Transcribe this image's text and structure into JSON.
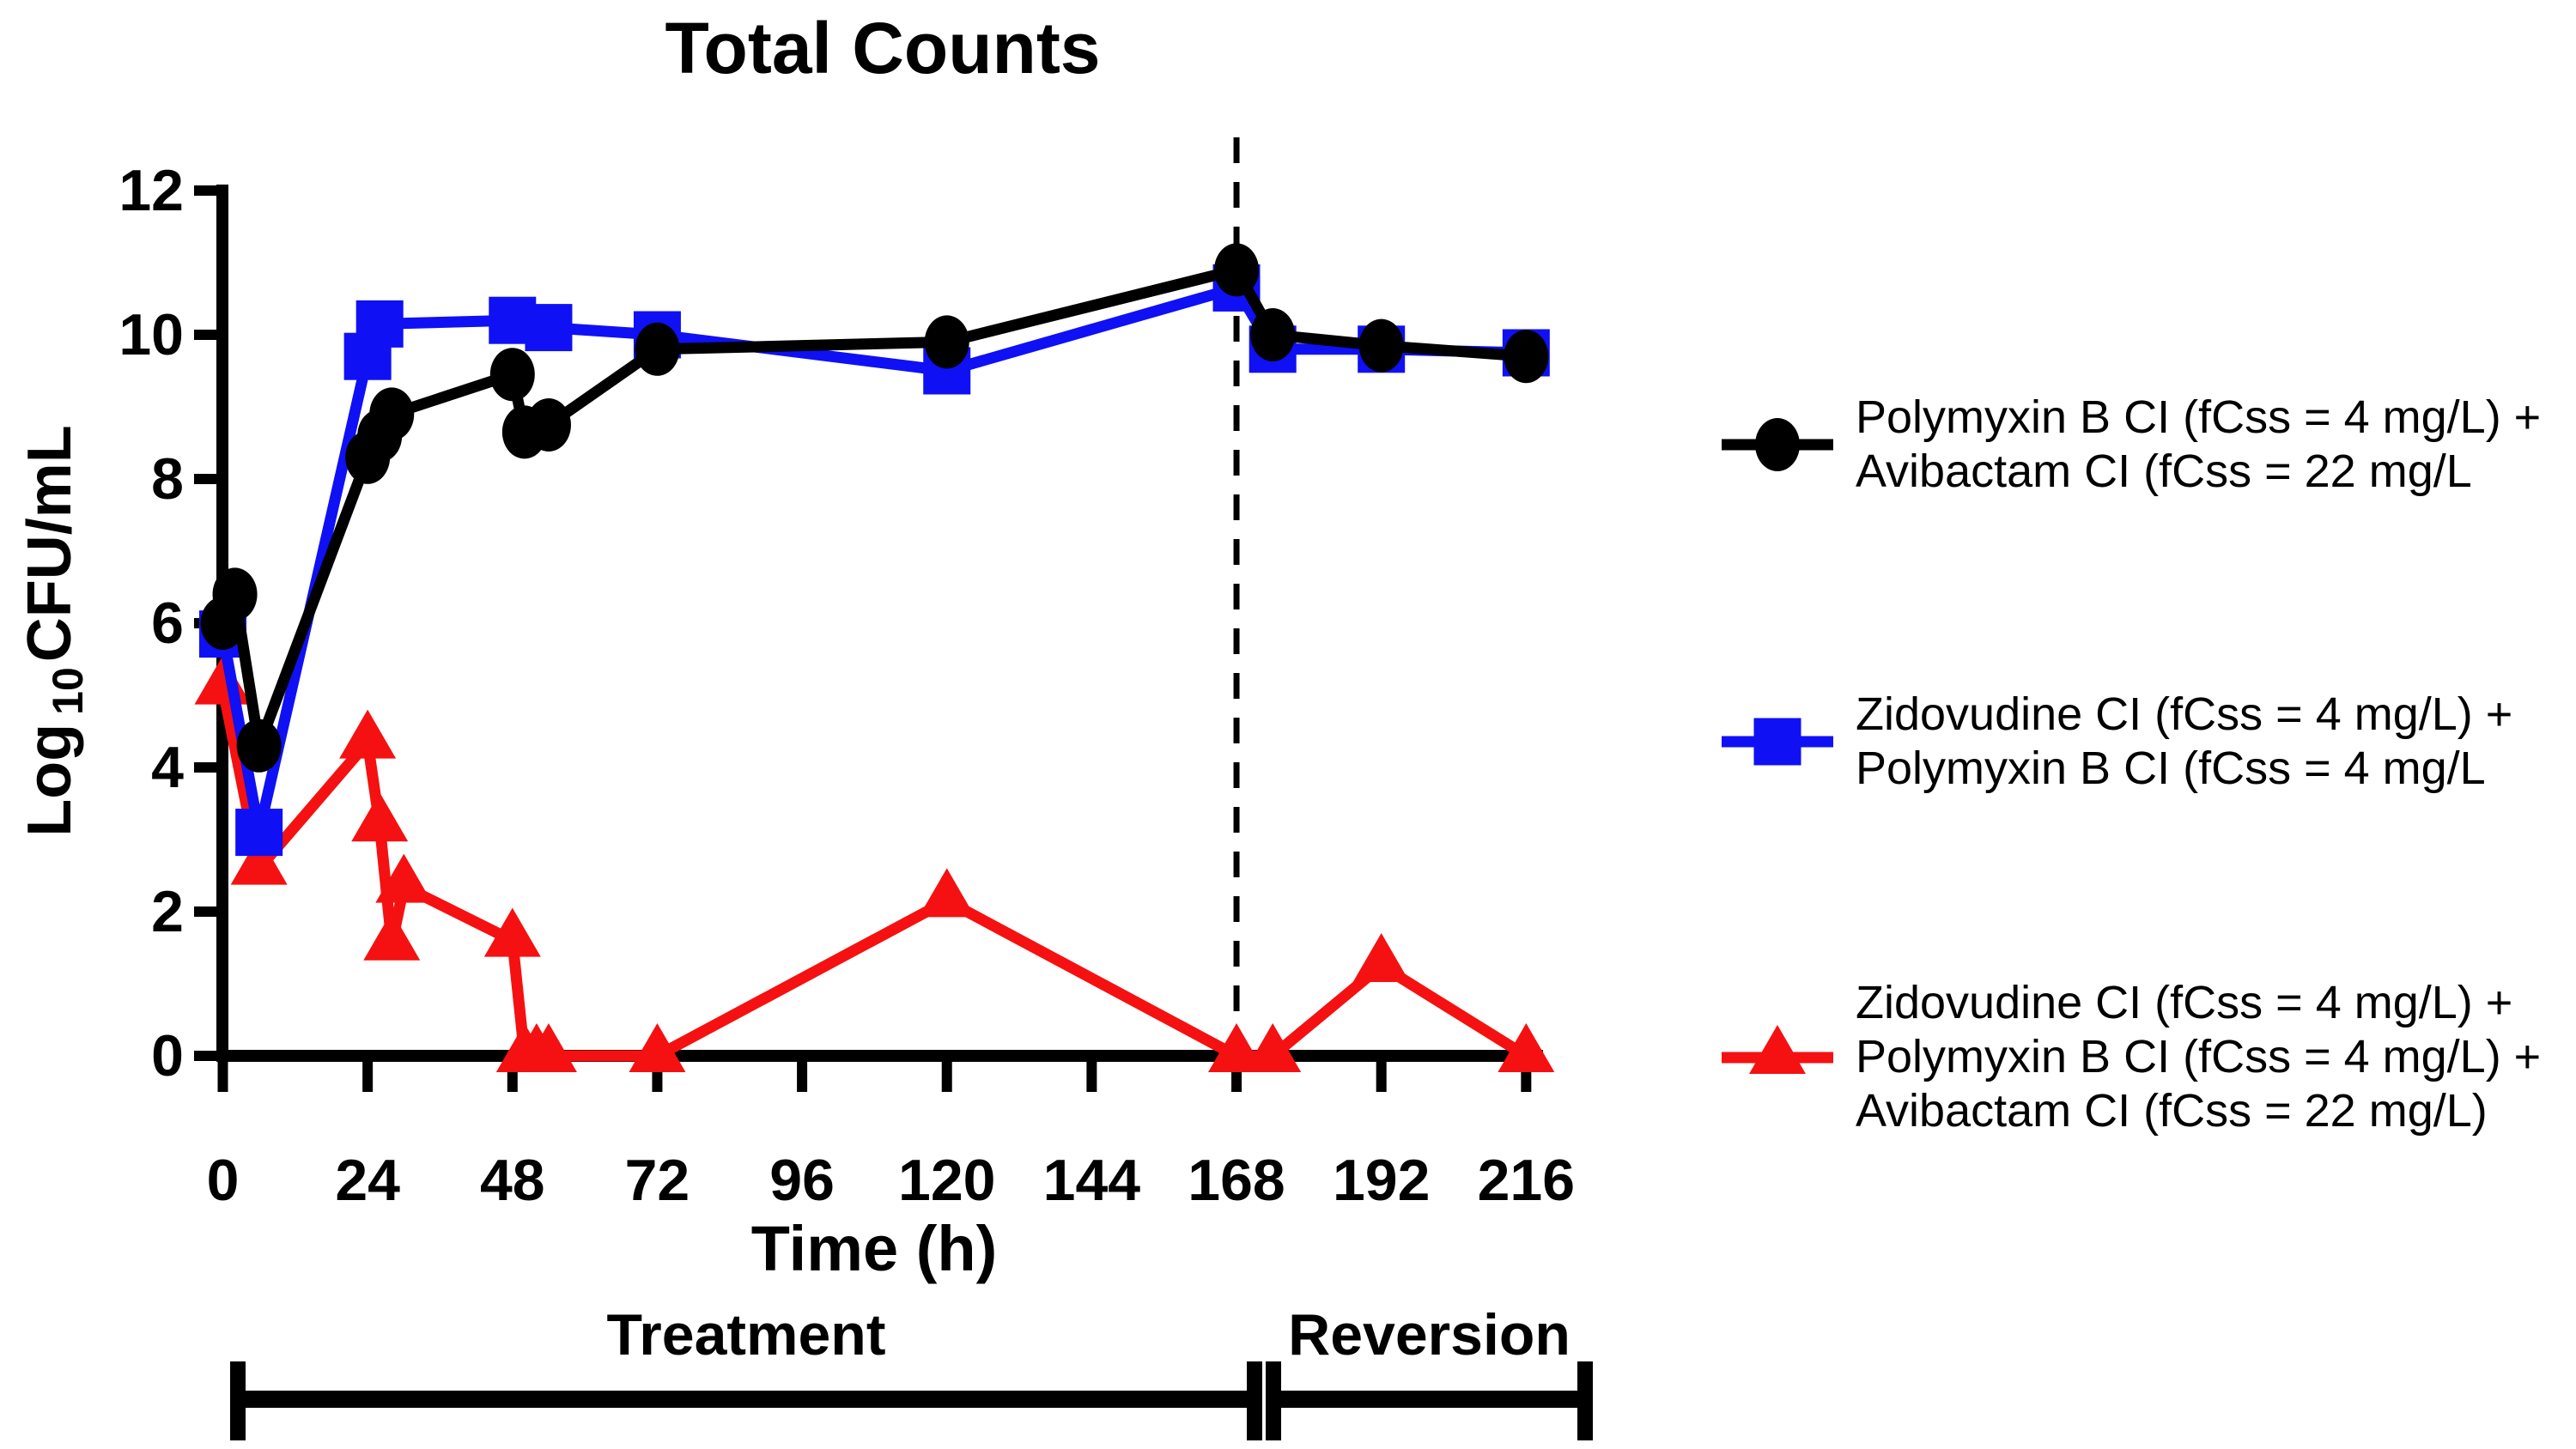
{
  "title": "Total Counts",
  "colors": {
    "black_series": "#000000",
    "blue_series": "#1010f5",
    "red_series": "#f51111",
    "axis": "#000000",
    "background": "#ffffff"
  },
  "chart_data": {
    "type": "line",
    "title": "Total Counts",
    "xlabel": "Time (h)",
    "ylabel": "Log 10 CFU/mL",
    "ylabel_parts": [
      "Log",
      "10",
      "CFU/mL"
    ],
    "xlim": [
      0,
      216
    ],
    "ylim": [
      0,
      12
    ],
    "x_ticks": [
      0,
      24,
      48,
      72,
      96,
      120,
      144,
      168,
      192,
      216
    ],
    "y_ticks": [
      0,
      2,
      4,
      6,
      8,
      10,
      12
    ],
    "grid": "off",
    "dashed_vline_x": 168,
    "series": [
      {
        "name": "Polymyxin B CI (fCss = 4 mg/L) + Avibactam CI (fCss = 22 mg/L",
        "color": "#000000",
        "marker": "circle",
        "points": [
          [
            0,
            6.0
          ],
          [
            2,
            6.4
          ],
          [
            6,
            4.3
          ],
          [
            24,
            8.3
          ],
          [
            26,
            8.6
          ],
          [
            28,
            8.9
          ],
          [
            48,
            9.45
          ],
          [
            50,
            8.65
          ],
          [
            54,
            8.75
          ],
          [
            72,
            9.8
          ],
          [
            120,
            9.9
          ],
          [
            168,
            10.9
          ],
          [
            174,
            10.0
          ],
          [
            192,
            9.85
          ],
          [
            216,
            9.7
          ]
        ]
      },
      {
        "name": "Zidovudine CI (fCss = 4 mg/L) + Polymyxin B CI (fCss = 4 mg/L",
        "color": "#1010f5",
        "marker": "square",
        "points": [
          [
            0,
            5.85
          ],
          [
            6,
            3.1
          ],
          [
            24,
            9.7
          ],
          [
            26,
            10.15
          ],
          [
            48,
            10.2
          ],
          [
            54,
            10.1
          ],
          [
            72,
            10.0
          ],
          [
            120,
            9.5
          ],
          [
            168,
            10.65
          ],
          [
            174,
            9.8
          ],
          [
            192,
            9.8
          ],
          [
            216,
            9.75
          ]
        ]
      },
      {
        "name": "Zidovudine CI (fCss = 4 mg/L) + Polymyxin B CI (fCss = 4 mg/L) + Avibactam CI (fCss = 22 mg/L)",
        "color": "#f51111",
        "marker": "triangle",
        "points": [
          [
            0,
            5.1
          ],
          [
            6,
            2.6
          ],
          [
            24,
            4.35
          ],
          [
            26,
            3.2
          ],
          [
            28,
            1.55
          ],
          [
            30,
            2.35
          ],
          [
            48,
            1.6
          ],
          [
            50,
            0
          ],
          [
            52,
            0
          ],
          [
            54,
            0
          ],
          [
            72,
            0
          ],
          [
            120,
            2.15
          ],
          [
            168,
            0
          ],
          [
            174,
            0
          ],
          [
            192,
            1.25
          ],
          [
            216,
            0
          ]
        ]
      }
    ],
    "legend_position": "right"
  },
  "legend": {
    "entries": [
      {
        "marker": "circle",
        "color": "#000000",
        "text": "Polymyxin B CI (fCss = 4 mg/L) +\nAvibactam CI (fCss = 22 mg/L"
      },
      {
        "marker": "square",
        "color": "#1010f5",
        "text": "Zidovudine CI (fCss = 4 mg/L) +\nPolymyxin B CI (fCss = 4 mg/L"
      },
      {
        "marker": "triangle",
        "color": "#f51111",
        "text": "Zidovudine CI (fCss = 4 mg/L) +\nPolymyxin B CI (fCss = 4 mg/L) +\nAvibactam CI (fCss = 22 mg/L)"
      }
    ]
  },
  "annotations": {
    "dashed_line_time": 168,
    "phases": [
      {
        "label": "Treatment",
        "start_h": 0,
        "end_h": 168
      },
      {
        "label": "Reversion",
        "start_h": 168,
        "end_h": 216
      }
    ]
  }
}
